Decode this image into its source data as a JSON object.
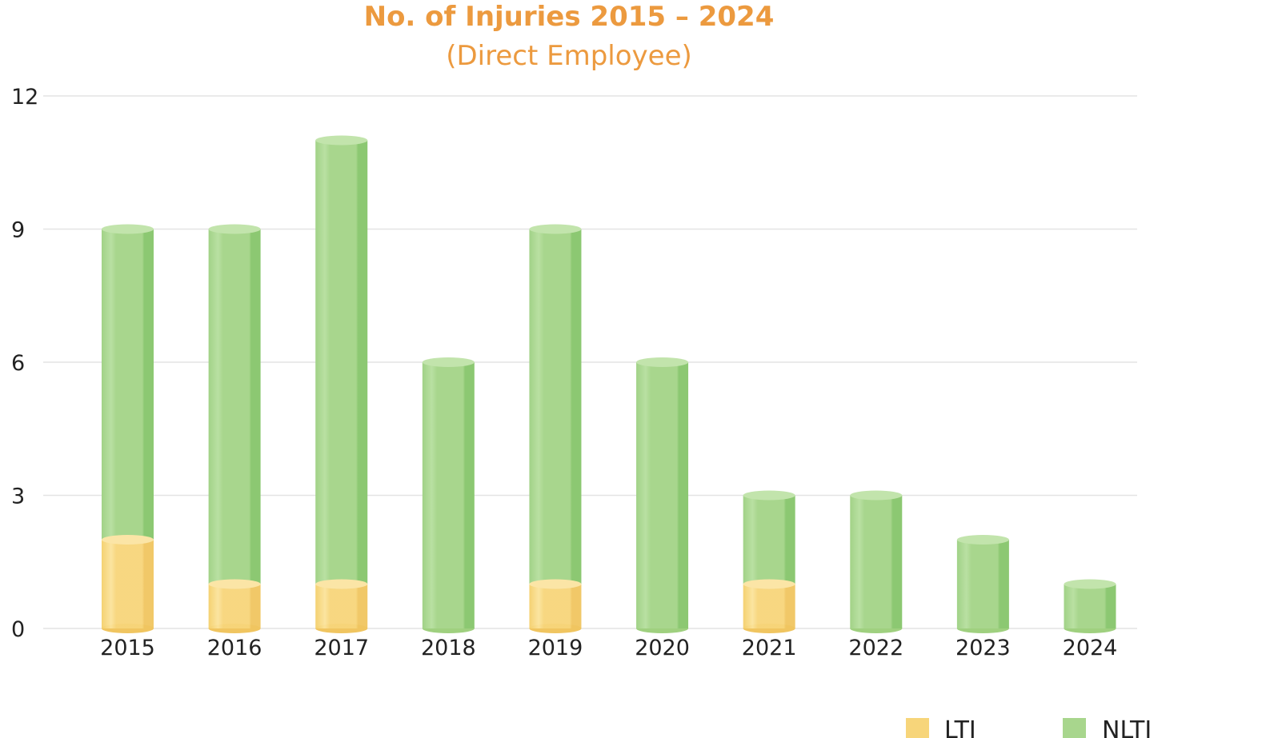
{
  "chart_data": {
    "type": "bar",
    "stacked": true,
    "title": "No. of Injuries 2015 – 2024",
    "subtitle": "(Direct Employee)",
    "categories": [
      "2015",
      "2016",
      "2017",
      "2018",
      "2019",
      "2020",
      "2021",
      "2022",
      "2023",
      "2024"
    ],
    "series": [
      {
        "name": "LTI",
        "values": [
          2,
          1,
          1,
          0,
          1,
          0,
          1,
          0,
          0,
          0
        ],
        "color": "#f7d57a"
      },
      {
        "name": "NLTI",
        "values": [
          7,
          8,
          10,
          6,
          8,
          6,
          2,
          3,
          2,
          1
        ],
        "color": "#a8d68d"
      }
    ],
    "ylim": [
      0,
      12
    ],
    "yticks": [
      "0",
      "3",
      "6",
      "9",
      "12"
    ],
    "grid": true,
    "legend": "bottom-right",
    "title_color": "#ec9a3f"
  }
}
